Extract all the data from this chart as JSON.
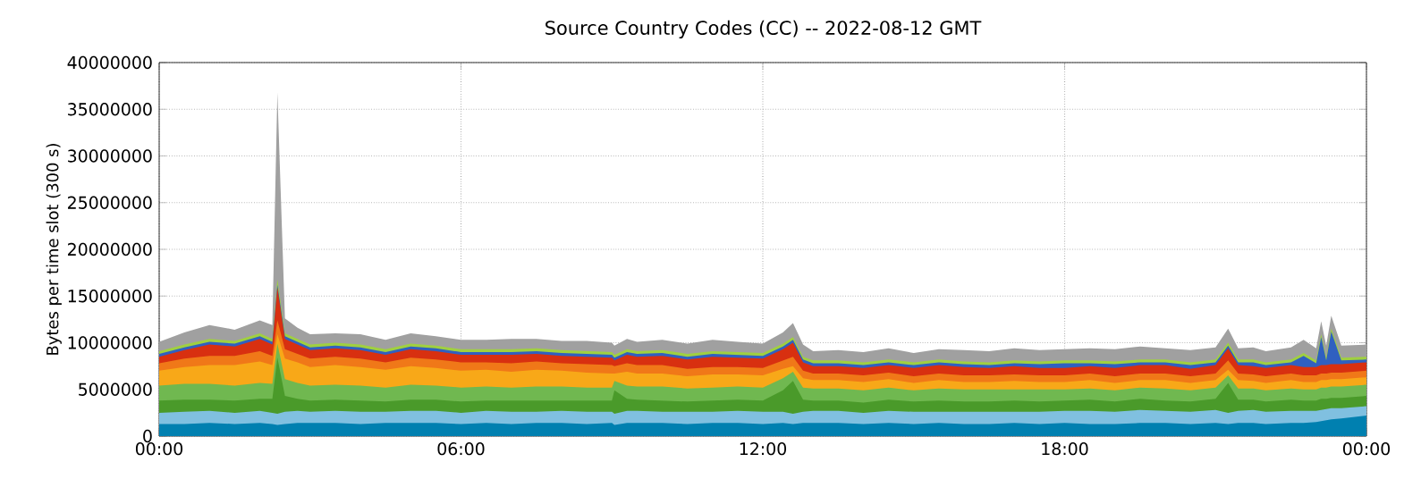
{
  "chart_data": {
    "type": "area",
    "stacked": true,
    "title": "Source Country Codes (CC) -- 2022-08-12 GMT",
    "ylabel": "Bytes per time slot (300 s)",
    "x": [
      0,
      0.5,
      1,
      1.5,
      2,
      2.25,
      2.35,
      2.5,
      2.75,
      3,
      3.5,
      4,
      4.5,
      5,
      5.5,
      6,
      6.5,
      7,
      7.5,
      8,
      8.5,
      9,
      9.05,
      9.3,
      9.5,
      10,
      10.5,
      11,
      11.5,
      12,
      12.4,
      12.6,
      12.8,
      13,
      13.5,
      14,
      14.5,
      15,
      15.5,
      16,
      16.5,
      17,
      17.5,
      18,
      18.5,
      19,
      19.5,
      20,
      20.5,
      21,
      21.25,
      21.45,
      21.75,
      22,
      22.5,
      22.75,
      23.0,
      23.1,
      23.2,
      23.3,
      23.5,
      24
    ],
    "xlim": [
      0,
      24
    ],
    "xticks": [
      {
        "value": 0,
        "label": "00:00"
      },
      {
        "value": 6,
        "label": "06:00"
      },
      {
        "value": 12,
        "label": "12:00"
      },
      {
        "value": 18,
        "label": "18:00"
      },
      {
        "value": 24,
        "label": "00:00"
      }
    ],
    "ylim": [
      0,
      40000000
    ],
    "yticks": [
      0,
      5000000,
      10000000,
      15000000,
      20000000,
      25000000,
      30000000,
      35000000,
      40000000
    ],
    "grid": true,
    "series": [
      {
        "color": "#0080b0",
        "values": [
          1300000.0,
          1300000.0,
          1400000.0,
          1300000.0,
          1400000.0,
          1300000.0,
          1200000.0,
          1300000.0,
          1400000.0,
          1400000.0,
          1400000.0,
          1300000.0,
          1400000.0,
          1400000.0,
          1400000.0,
          1300000.0,
          1400000.0,
          1300000.0,
          1400000.0,
          1400000.0,
          1300000.0,
          1400000.0,
          1200000.0,
          1400000.0,
          1400000.0,
          1400000.0,
          1300000.0,
          1400000.0,
          1400000.0,
          1300000.0,
          1400000.0,
          1300000.0,
          1400000.0,
          1400000.0,
          1400000.0,
          1300000.0,
          1400000.0,
          1300000.0,
          1400000.0,
          1300000.0,
          1300000.0,
          1400000.0,
          1300000.0,
          1400000.0,
          1300000.0,
          1300000.0,
          1400000.0,
          1400000.0,
          1300000.0,
          1400000.0,
          1300000.0,
          1400000.0,
          1400000.0,
          1300000.0,
          1400000.0,
          1400000.0,
          1500000.0,
          1600000.0,
          1700000.0,
          1800000.0,
          1900000.0,
          2200000.0
        ]
      },
      {
        "color": "#80c0e0",
        "values": [
          1200000.0,
          1300000.0,
          1300000.0,
          1200000.0,
          1300000.0,
          1200000.0,
          1200000.0,
          1300000.0,
          1300000.0,
          1200000.0,
          1300000.0,
          1300000.0,
          1200000.0,
          1300000.0,
          1300000.0,
          1200000.0,
          1300000.0,
          1300000.0,
          1200000.0,
          1300000.0,
          1300000.0,
          1200000.0,
          1200000.0,
          1300000.0,
          1300000.0,
          1200000.0,
          1300000.0,
          1200000.0,
          1300000.0,
          1300000.0,
          1200000.0,
          1100000.0,
          1200000.0,
          1300000.0,
          1300000.0,
          1200000.0,
          1300000.0,
          1300000.0,
          1200000.0,
          1300000.0,
          1300000.0,
          1200000.0,
          1300000.0,
          1300000.0,
          1400000.0,
          1300000.0,
          1400000.0,
          1300000.0,
          1300000.0,
          1400000.0,
          1200000.0,
          1300000.0,
          1400000.0,
          1300000.0,
          1300000.0,
          1300000.0,
          1200000.0,
          1200000.0,
          1200000.0,
          1200000.0,
          1100000.0,
          1000000.0
        ]
      },
      {
        "color": "#4a9a2a",
        "values": [
          1300000.0,
          1300000.0,
          1200000.0,
          1300000.0,
          1300000.0,
          1500000.0,
          6000000.0,
          1700000.0,
          1300000.0,
          1200000.0,
          1200000.0,
          1200000.0,
          1100000.0,
          1200000.0,
          1200000.0,
          1200000.0,
          1100000.0,
          1200000.0,
          1200000.0,
          1100000.0,
          1200000.0,
          1200000.0,
          2500000.0,
          1300000.0,
          1200000.0,
          1200000.0,
          1100000.0,
          1200000.0,
          1200000.0,
          1200000.0,
          2300000.0,
          3500000.0,
          1300000.0,
          1100000.0,
          1100000.0,
          1100000.0,
          1200000.0,
          1100000.0,
          1200000.0,
          1100000.0,
          1100000.0,
          1200000.0,
          1100000.0,
          1100000.0,
          1200000.0,
          1100000.0,
          1200000.0,
          1100000.0,
          1100000.0,
          1200000.0,
          3200000.0,
          1200000.0,
          1100000.0,
          1100000.0,
          1200000.0,
          1100000.0,
          1100000.0,
          1200000.0,
          1100000.0,
          1100000.0,
          1100000.0,
          1100000.0
        ]
      },
      {
        "color": "#70b850",
        "values": [
          1600000.0,
          1700000.0,
          1700000.0,
          1600000.0,
          1700000.0,
          1600000.0,
          1500000.0,
          1800000.0,
          1700000.0,
          1600000.0,
          1600000.0,
          1600000.0,
          1500000.0,
          1600000.0,
          1500000.0,
          1500000.0,
          1500000.0,
          1400000.0,
          1500000.0,
          1500000.0,
          1400000.0,
          1400000.0,
          1000000.0,
          1400000.0,
          1400000.0,
          1500000.0,
          1400000.0,
          1400000.0,
          1400000.0,
          1400000.0,
          1300000.0,
          1000000.0,
          1300000.0,
          1300000.0,
          1300000.0,
          1300000.0,
          1300000.0,
          1200000.0,
          1300000.0,
          1300000.0,
          1300000.0,
          1200000.0,
          1300000.0,
          1200000.0,
          1200000.0,
          1200000.0,
          1200000.0,
          1300000.0,
          1200000.0,
          1200000.0,
          800000.0,
          1200000.0,
          1200000.0,
          1200000.0,
          1200000.0,
          1200000.0,
          1200000.0,
          1200000.0,
          1200000.0,
          1200000.0,
          1200000.0,
          1200000.0
        ]
      },
      {
        "color": "#f8a818",
        "values": [
          1600000.0,
          1800000.0,
          2000000.0,
          2200000.0,
          2300000.0,
          2000000.0,
          1000000.0,
          2200000.0,
          2200000.0,
          2000000.0,
          2100000.0,
          2000000.0,
          1900000.0,
          2000000.0,
          1900000.0,
          1800000.0,
          1800000.0,
          1700000.0,
          1800000.0,
          1700000.0,
          1600000.0,
          1500000.0,
          800000.0,
          1500000.0,
          1400000.0,
          1400000.0,
          1300000.0,
          1400000.0,
          1300000.0,
          1300000.0,
          1000000.0,
          600000.0,
          1000000.0,
          900000.0,
          900000.0,
          900000.0,
          900000.0,
          800000.0,
          900000.0,
          800000.0,
          800000.0,
          900000.0,
          800000.0,
          800000.0,
          900000.0,
          800000.0,
          800000.0,
          900000.0,
          800000.0,
          800000.0,
          600000.0,
          900000.0,
          800000.0,
          800000.0,
          900000.0,
          800000.0,
          800000.0,
          800000.0,
          800000.0,
          800000.0,
          800000.0,
          800000.0
        ]
      },
      {
        "color": "#f07818",
        "values": [
          800000.0,
          900000.0,
          1000000.0,
          1000000.0,
          1100000.0,
          1000000.0,
          1500000.0,
          1000000.0,
          900000.0,
          900000.0,
          900000.0,
          900000.0,
          800000.0,
          900000.0,
          900000.0,
          900000.0,
          800000.0,
          900000.0,
          900000.0,
          800000.0,
          900000.0,
          900000.0,
          800000.0,
          900000.0,
          900000.0,
          900000.0,
          800000.0,
          800000.0,
          800000.0,
          800000.0,
          900000.0,
          1000000.0,
          800000.0,
          700000.0,
          700000.0,
          700000.0,
          700000.0,
          700000.0,
          700000.0,
          700000.0,
          700000.0,
          700000.0,
          700000.0,
          700000.0,
          700000.0,
          700000.0,
          700000.0,
          700000.0,
          700000.0,
          700000.0,
          1000000.0,
          700000.0,
          700000.0,
          700000.0,
          700000.0,
          700000.0,
          700000.0,
          700000.0,
          700000.0,
          700000.0,
          700000.0,
          700000.0
        ]
      },
      {
        "color": "#d83010",
        "values": [
          700000.0,
          900000.0,
          1200000.0,
          1000000.0,
          1300000.0,
          1200000.0,
          3500000.0,
          1100000.0,
          1000000.0,
          900000.0,
          900000.0,
          900000.0,
          800000.0,
          900000.0,
          900000.0,
          800000.0,
          800000.0,
          900000.0,
          800000.0,
          800000.0,
          800000.0,
          800000.0,
          600000.0,
          900000.0,
          900000.0,
          1000000.0,
          1000000.0,
          1100000.0,
          1000000.0,
          1000000.0,
          1200000.0,
          1500000.0,
          900000.0,
          800000.0,
          800000.0,
          800000.0,
          800000.0,
          900000.0,
          900000.0,
          900000.0,
          800000.0,
          900000.0,
          800000.0,
          800000.0,
          800000.0,
          900000.0,
          900000.0,
          900000.0,
          800000.0,
          900000.0,
          1300000.0,
          900000.0,
          900000.0,
          900000.0,
          900000.0,
          900000.0,
          900000.0,
          900000.0,
          900000.0,
          900000.0,
          900000.0,
          900000.0
        ]
      },
      {
        "color": "#3060c0",
        "values": [
          300000.0,
          300000.0,
          300000.0,
          300000.0,
          300000.0,
          300000.0,
          300000.0,
          300000.0,
          300000.0,
          300000.0,
          300000.0,
          300000.0,
          300000.0,
          300000.0,
          300000.0,
          300000.0,
          300000.0,
          300000.0,
          300000.0,
          300000.0,
          300000.0,
          300000.0,
          300000.0,
          300000.0,
          300000.0,
          300000.0,
          300000.0,
          300000.0,
          300000.0,
          300000.0,
          300000.0,
          300000.0,
          300000.0,
          300000.0,
          300000.0,
          300000.0,
          300000.0,
          300000.0,
          300000.0,
          300000.0,
          300000.0,
          300000.0,
          400000.0,
          500000.0,
          300000.0,
          400000.0,
          300000.0,
          300000.0,
          400000.0,
          300000.0,
          300000.0,
          300000.0,
          400000.0,
          300000.0,
          300000.0,
          1200000.0,
          400000.0,
          3000000.0,
          500000.0,
          3500000.0,
          400000.0,
          300000.0
        ]
      },
      {
        "color": "#a0d040",
        "values": [
          300000.0,
          300000.0,
          300000.0,
          300000.0,
          300000.0,
          300000.0,
          600000.0,
          300000.0,
          300000.0,
          300000.0,
          300000.0,
          300000.0,
          300000.0,
          300000.0,
          300000.0,
          300000.0,
          300000.0,
          300000.0,
          300000.0,
          300000.0,
          300000.0,
          300000.0,
          300000.0,
          300000.0,
          300000.0,
          300000.0,
          300000.0,
          300000.0,
          300000.0,
          300000.0,
          300000.0,
          300000.0,
          300000.0,
          300000.0,
          300000.0,
          300000.0,
          300000.0,
          300000.0,
          300000.0,
          300000.0,
          300000.0,
          300000.0,
          300000.0,
          300000.0,
          300000.0,
          300000.0,
          300000.0,
          300000.0,
          300000.0,
          300000.0,
          300000.0,
          300000.0,
          300000.0,
          300000.0,
          300000.0,
          300000.0,
          300000.0,
          300000.0,
          300000.0,
          300000.0,
          300000.0,
          300000.0
        ]
      },
      {
        "color": "#a0a0a0",
        "values": [
          1000000.0,
          1300000.0,
          1500000.0,
          1200000.0,
          1400000.0,
          1500000.0,
          20000000.0,
          1600000.0,
          1200000.0,
          1100000.0,
          1000000.0,
          1100000.0,
          1000000.0,
          1100000.0,
          1000000.0,
          1000000.0,
          1000000.0,
          1100000.0,
          1000000.0,
          1000000.0,
          1100000.0,
          1000000.0,
          1000000.0,
          1100000.0,
          1000000.0,
          1100000.0,
          1100000.0,
          1200000.0,
          1100000.0,
          1000000.0,
          1200000.0,
          1500000.0,
          1300000.0,
          1000000.0,
          1100000.0,
          1100000.0,
          1200000.0,
          1000000.0,
          1100000.0,
          1200000.0,
          1200000.0,
          1300000.0,
          1200000.0,
          1200000.0,
          1300000.0,
          1300000.0,
          1400000.0,
          1200000.0,
          1300000.0,
          1300000.0,
          1500000.0,
          1200000.0,
          1300000.0,
          1200000.0,
          1300000.0,
          1400000.0,
          1300000.0,
          1400000.0,
          1300000.0,
          1400000.0,
          1300000.0,
          1300000.0
        ]
      }
    ]
  }
}
